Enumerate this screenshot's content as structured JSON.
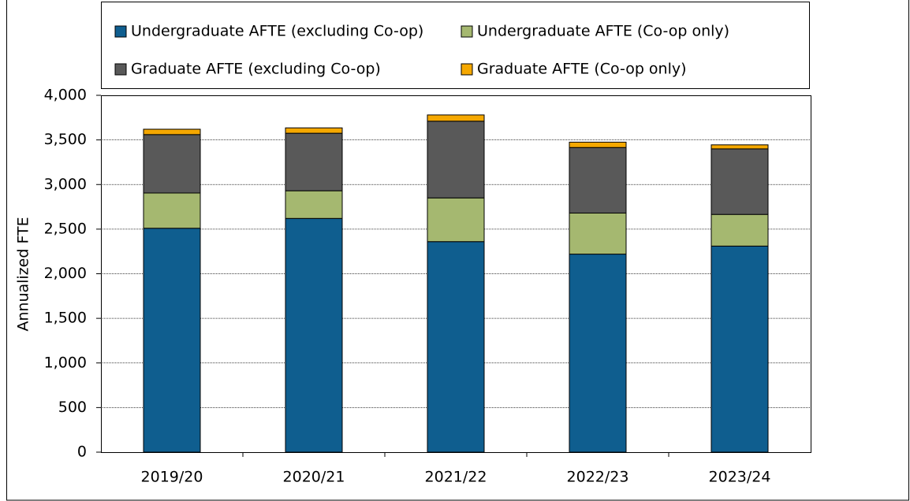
{
  "chart_data": {
    "type": "stacked_bar",
    "y_label": "Annualized FTE",
    "categories": [
      "2019/20",
      "2020/21",
      "2021/22",
      "2022/23",
      "2023/24"
    ],
    "series": [
      {
        "name": "Undergraduate AFTE (excluding Co-op)",
        "color": "#0f5e8f",
        "values": [
          2510,
          2620,
          2360,
          2220,
          2310
        ]
      },
      {
        "name": "Undergraduate AFTE (Co-op only)",
        "color": "#a5b870",
        "values": [
          395,
          310,
          490,
          460,
          355
        ]
      },
      {
        "name": "Graduate AFTE (excluding Co-op)",
        "color": "#595959",
        "values": [
          655,
          645,
          860,
          735,
          735
        ]
      },
      {
        "name": "Graduate AFTE (Co-op only)",
        "color": "#f5a800",
        "values": [
          60,
          60,
          70,
          60,
          45
        ]
      }
    ],
    "ylim": [
      0,
      4000
    ],
    "yticks": [
      0,
      500,
      {
        "value": 1000,
        "label": "1,000"
      },
      {
        "value": 1500,
        "label": "1,500"
      },
      {
        "value": 2000,
        "label": "2,000"
      },
      {
        "value": 2500,
        "label": "2,500"
      },
      {
        "value": 3000,
        "label": "3,000"
      },
      {
        "value": 3500,
        "label": "3,500"
      },
      {
        "value": 4000,
        "label": "4,000"
      }
    ],
    "grid": true
  }
}
